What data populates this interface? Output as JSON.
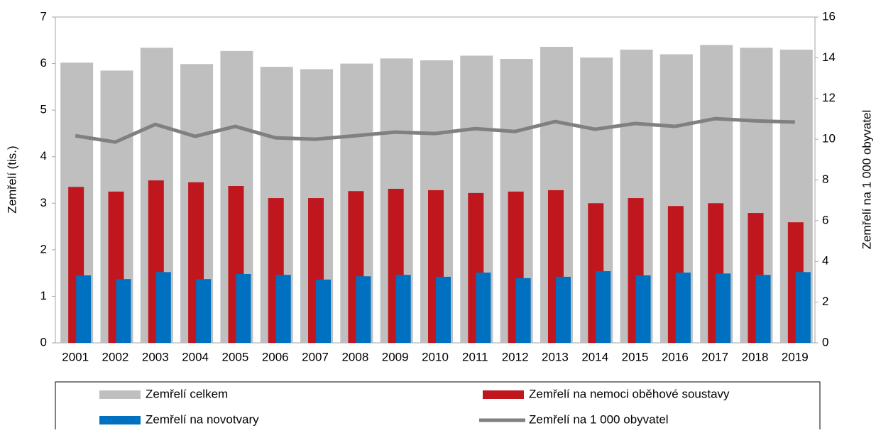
{
  "chart_data": {
    "type": "bar",
    "categories": [
      "2001",
      "2002",
      "2003",
      "2004",
      "2005",
      "2006",
      "2007",
      "2008",
      "2009",
      "2010",
      "2011",
      "2012",
      "2013",
      "2014",
      "2015",
      "2016",
      "2017",
      "2018",
      "2019"
    ],
    "series": [
      {
        "name": "Zemřelí celkem",
        "color": "#bfbfbf",
        "values": [
          6.02,
          5.85,
          6.34,
          5.99,
          6.27,
          5.93,
          5.88,
          6.0,
          6.11,
          6.07,
          6.17,
          6.1,
          6.36,
          6.13,
          6.3,
          6.2,
          6.4,
          6.34,
          6.3
        ]
      },
      {
        "name": "Zemřelí na nemoci oběhové soustavy",
        "color": "#c0161e",
        "values": [
          3.35,
          3.25,
          3.49,
          3.45,
          3.37,
          3.11,
          3.11,
          3.26,
          3.31,
          3.28,
          3.22,
          3.25,
          3.28,
          3.0,
          3.11,
          2.94,
          3.0,
          2.79,
          2.59
        ]
      },
      {
        "name": "Zemřelí na novotvary",
        "color": "#0070c0",
        "values": [
          1.45,
          1.37,
          1.52,
          1.37,
          1.48,
          1.46,
          1.36,
          1.43,
          1.46,
          1.42,
          1.51,
          1.39,
          1.42,
          1.54,
          1.45,
          1.51,
          1.49,
          1.46,
          1.52
        ]
      },
      {
        "name": "Zemřelí na 1 000 obyvatel",
        "color": "#808080",
        "type": "line",
        "axis": "y2",
        "values": [
          10.17,
          9.86,
          10.73,
          10.14,
          10.63,
          10.07,
          10.0,
          10.17,
          10.35,
          10.28,
          10.52,
          10.38,
          10.87,
          10.49,
          10.77,
          10.63,
          11.01,
          10.9,
          10.84
        ]
      }
    ],
    "ylabel": "Zemřelí (tis.)",
    "y2label": "Zemřelí na 1 000 obyvatel",
    "ylim": [
      0,
      7
    ],
    "yticks": [
      0,
      1,
      2,
      3,
      4,
      5,
      6,
      7
    ],
    "y2lim": [
      0,
      16
    ],
    "y2ticks": [
      0,
      2,
      4,
      6,
      8,
      10,
      12,
      14,
      16
    ],
    "grid": false,
    "legend": "bottom"
  }
}
